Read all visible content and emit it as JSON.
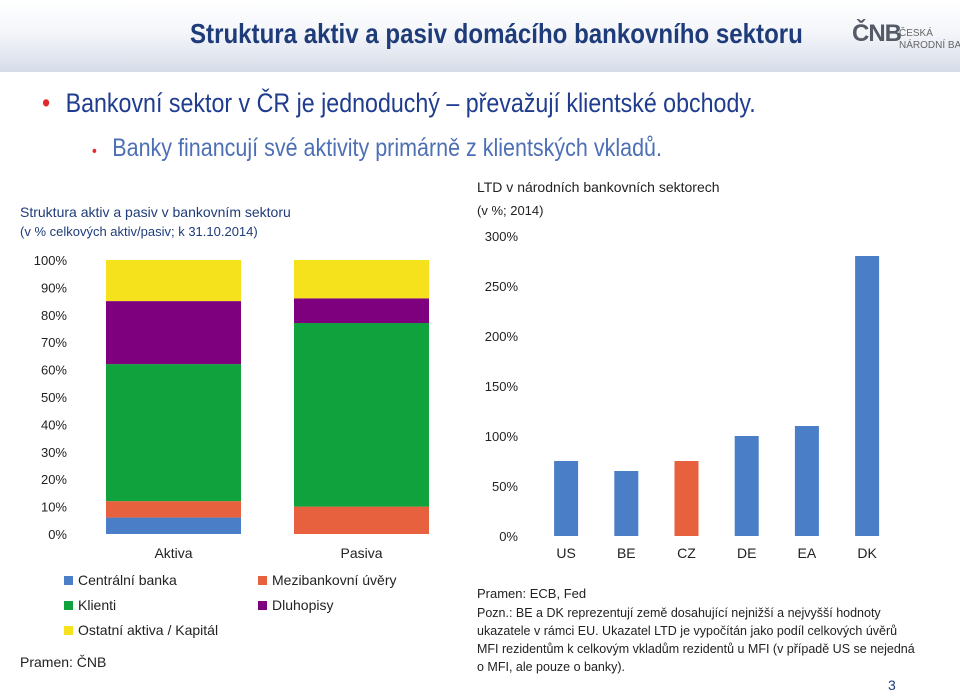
{
  "header": {
    "title": "Struktura aktiv a pasiv domácího bankovního sektoru",
    "logo": {
      "mark": "ČNB",
      "line1": "ČESKÁ",
      "line2": "NÁRODNÍ BANKA"
    }
  },
  "bullets": [
    "Bankovní sektor v ČR je jednoduchý – převažují klientské obchody.",
    "Banky financují své aktivity primárně z klientských vkladů."
  ],
  "left_panel": {
    "title": "Struktura aktiv a pasiv v bankovním sektoru",
    "subtitle": "(v % celkových aktiv/pasiv; k 31.10.2014)",
    "source": "Pramen: ČNB"
  },
  "right_panel": {
    "title": "LTD v národních bankovních sektorech",
    "subtitle": "(v %; 2014)",
    "source": "Pramen: ECB, Fed",
    "note": "Pozn.: BE a DK reprezentují země dosahující nejnižší a nejvyšší hodnoty ukazatele v rámci EU. Ukazatel LTD je vypočítán jako podíl celkových úvěrů MFI rezidentům k celkovým vkladům rezidentů u MFI (v případě US se nejedná o MFI, ale pouze o banky)."
  },
  "page_number": "3",
  "chart_data": [
    {
      "type": "bar",
      "stacked": true,
      "categories": [
        "Aktiva",
        "Pasiva"
      ],
      "series": [
        {
          "name": "Centrální banka",
          "color": "#4a7ec7",
          "values": [
            6,
            0
          ]
        },
        {
          "name": "Mezibankovní úvěry",
          "color": "#e8613f",
          "values": [
            6,
            10
          ]
        },
        {
          "name": "Klienti",
          "color": "#10a23c",
          "values": [
            50,
            67
          ]
        },
        {
          "name": "Dluhopisy",
          "color": "#7f007f",
          "values": [
            23,
            9
          ]
        },
        {
          "name": "Ostatní aktiva / Kapitál",
          "color": "#f5e11c",
          "values": [
            15,
            14
          ]
        }
      ],
      "ylim": [
        0,
        100
      ],
      "yticks": [
        "0%",
        "10%",
        "20%",
        "30%",
        "40%",
        "50%",
        "60%",
        "70%",
        "80%",
        "90%",
        "100%"
      ],
      "legend_order": [
        [
          "Centrální banka",
          "Mezibankovní úvěry"
        ],
        [
          "Klienti",
          "Dluhopisy"
        ],
        [
          "Ostatní aktiva / Kapitál"
        ]
      ],
      "grid": false
    },
    {
      "type": "bar",
      "categories": [
        "US",
        "BE",
        "CZ",
        "DE",
        "EA",
        "DK"
      ],
      "values": [
        75,
        65,
        75,
        100,
        110,
        280
      ],
      "colors": [
        "#4a7ec7",
        "#4a7ec7",
        "#e8613f",
        "#4a7ec7",
        "#4a7ec7",
        "#4a7ec7"
      ],
      "ylim": [
        0,
        300
      ],
      "yticks": [
        "0%",
        "50%",
        "100%",
        "150%",
        "200%",
        "250%",
        "300%"
      ],
      "grid": false
    }
  ]
}
